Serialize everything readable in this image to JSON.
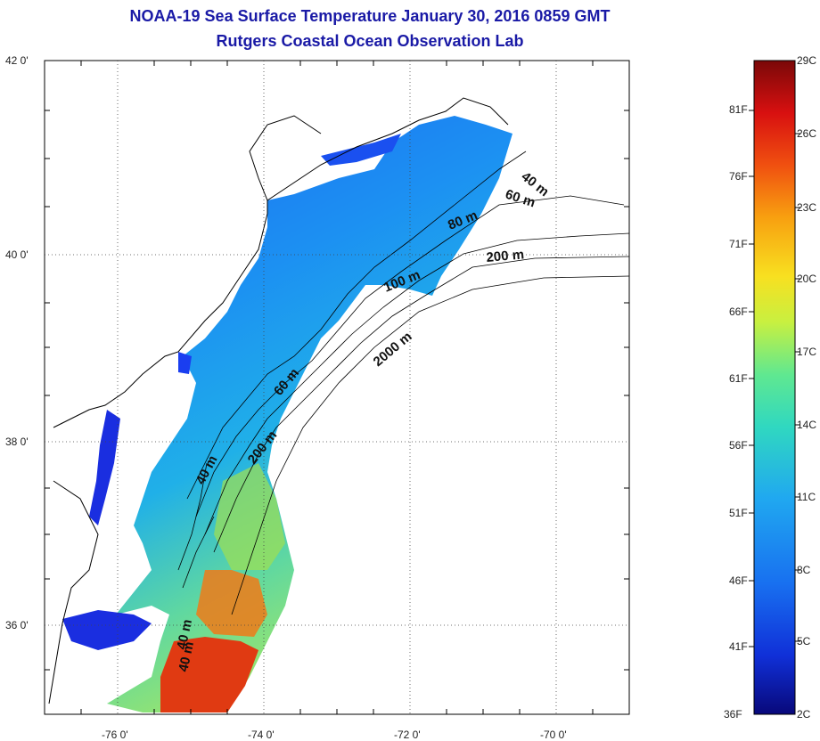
{
  "header": {
    "title": "NOAA-19 Sea Surface Temperature January 30, 2016 0859 GMT",
    "subtitle": "Rutgers Coastal Ocean Observation Lab"
  },
  "map": {
    "lat_ticks": [
      "42 0'",
      "40 0'",
      "38 0'",
      "36 0'"
    ],
    "lon_ticks": [
      "-76 0'",
      "-74 0'",
      "-72 0'",
      "-70 0'"
    ],
    "grid": true,
    "isobath_labels": [
      "40 m",
      "60 m",
      "80 m",
      "200 m",
      "100 m",
      "2000 m",
      "60 m",
      "200 m",
      "40 m",
      "40 m"
    ]
  },
  "colorbar": {
    "fahrenheit_labels": [
      "81F",
      "76F",
      "71F",
      "66F",
      "61F",
      "56F",
      "51F",
      "46F",
      "41F",
      "36F"
    ],
    "celsius_labels": [
      "29C",
      "26C",
      "23C",
      "20C",
      "17C",
      "14C",
      "11C",
      "8C",
      "5C",
      "2C"
    ],
    "colors": [
      "#08087a",
      "#1030d8",
      "#1870f0",
      "#20a8f0",
      "#30d8c0",
      "#60e890",
      "#c8f040",
      "#f8e020",
      "#f8a010",
      "#f05010",
      "#d81010",
      "#7a0808"
    ]
  }
}
